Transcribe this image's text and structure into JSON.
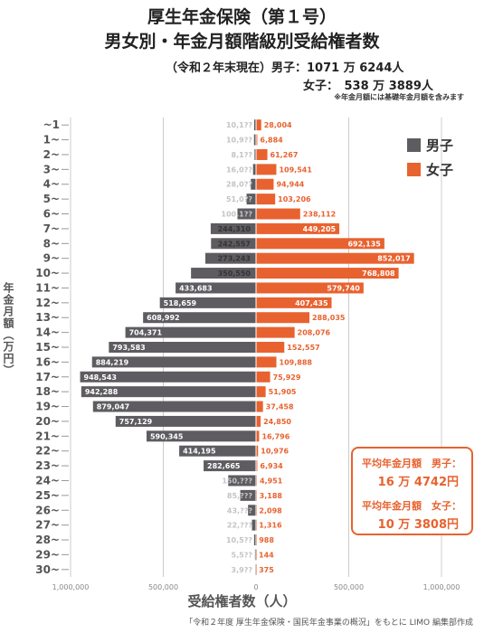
{
  "header": {
    "title_line1": "厚生年金保険（第１号）",
    "title_line2": "男女別・年金月額階級別受給権者数",
    "subline1": "（令和２年末現在）男子：1071 万 6244人",
    "subline2": "女子：　538 万 3889人",
    "note": "※年金月額には基礎年金月額を含みます"
  },
  "legend": {
    "male": "男子",
    "female": "女子"
  },
  "colors": {
    "male": "#5e5c60",
    "female": "#e8622f",
    "grid": "#cccccc",
    "text": "#555555"
  },
  "axis": {
    "ylabel": "年金月額（万円）",
    "xlabel": "受給権者数（人）",
    "x_ticks": [
      "1,000,000",
      "500,000",
      "0",
      "500,000",
      "1,000,000"
    ]
  },
  "average_box": {
    "male_label": "平均年金月額　男子：",
    "male_value": "16 万 4742円",
    "female_label": "平均年金月額　女子：",
    "female_value": "10 万 3808円"
  },
  "source": "「令和２年度 厚生年金保険・国民年金事業の概況」をもとに LIMO 編集部作成",
  "chart_data": {
    "type": "bar",
    "orientation": "horizontal-butterfly",
    "categories": [
      "~1",
      "1~",
      "2~",
      "3~",
      "4~",
      "5~",
      "6~",
      "7~",
      "8~",
      "9~",
      "10~",
      "11~",
      "12~",
      "13~",
      "14~",
      "15~",
      "16~",
      "17~",
      "18~",
      "19~",
      "20~",
      "21~",
      "22~",
      "23~",
      "24~",
      "25~",
      "26~",
      "27~",
      "28~",
      "29~",
      "30~"
    ],
    "xlim": [
      -1000000,
      1000000
    ],
    "grid": true,
    "legend_position": "top-right",
    "series": [
      {
        "name": "男子",
        "values": [
          10100,
          10900,
          8100,
          16000,
          28000,
          51000,
          100100,
          244310,
          242557,
          273243,
          350550,
          433683,
          518659,
          608992,
          704371,
          793583,
          884219,
          948543,
          942288,
          879047,
          757129,
          590345,
          414195,
          282665,
          150000,
          85000,
          43000,
          22000,
          10500,
          5500,
          3900
        ],
        "labels": [
          "10,1??",
          "10,9??",
          "8,1??",
          "16,0??",
          "28,0??",
          "51,0??",
          "100,1??",
          "244,310",
          "242,557",
          "273,243",
          "350,550",
          "433,683",
          "518,659",
          "608,992",
          "704,371",
          "793,583",
          "884,219",
          "948,543",
          "942,288",
          "879,047",
          "757,129",
          "590,345",
          "414,195",
          "282,665",
          "150,???",
          "85,???",
          "43,???",
          "22,???",
          "10,5??",
          "5,5??",
          "3,9??"
        ]
      },
      {
        "name": "女子",
        "values": [
          28004,
          6884,
          61267,
          109541,
          94944,
          103206,
          238112,
          449205,
          692135,
          852017,
          768808,
          579740,
          407435,
          288035,
          208076,
          152557,
          109888,
          75929,
          51905,
          37458,
          24850,
          16796,
          10976,
          6934,
          4951,
          3188,
          2098,
          1316,
          988,
          144,
          375
        ],
        "labels": [
          "28,004",
          "6,884",
          "61,267",
          "109,541",
          "94,944",
          "103,206",
          "238,112",
          "449,205",
          "692,135",
          "852,017",
          "768,808",
          "579,740",
          "407,435",
          "288,035",
          "208,076",
          "152,557",
          "109,888",
          "75,929",
          "51,905",
          "37,458",
          "24,850",
          "16,796",
          "10,976",
          "6,934",
          "4,951",
          "3,188",
          "2,098",
          "1,316",
          "988",
          "144",
          "375"
        ]
      }
    ]
  }
}
